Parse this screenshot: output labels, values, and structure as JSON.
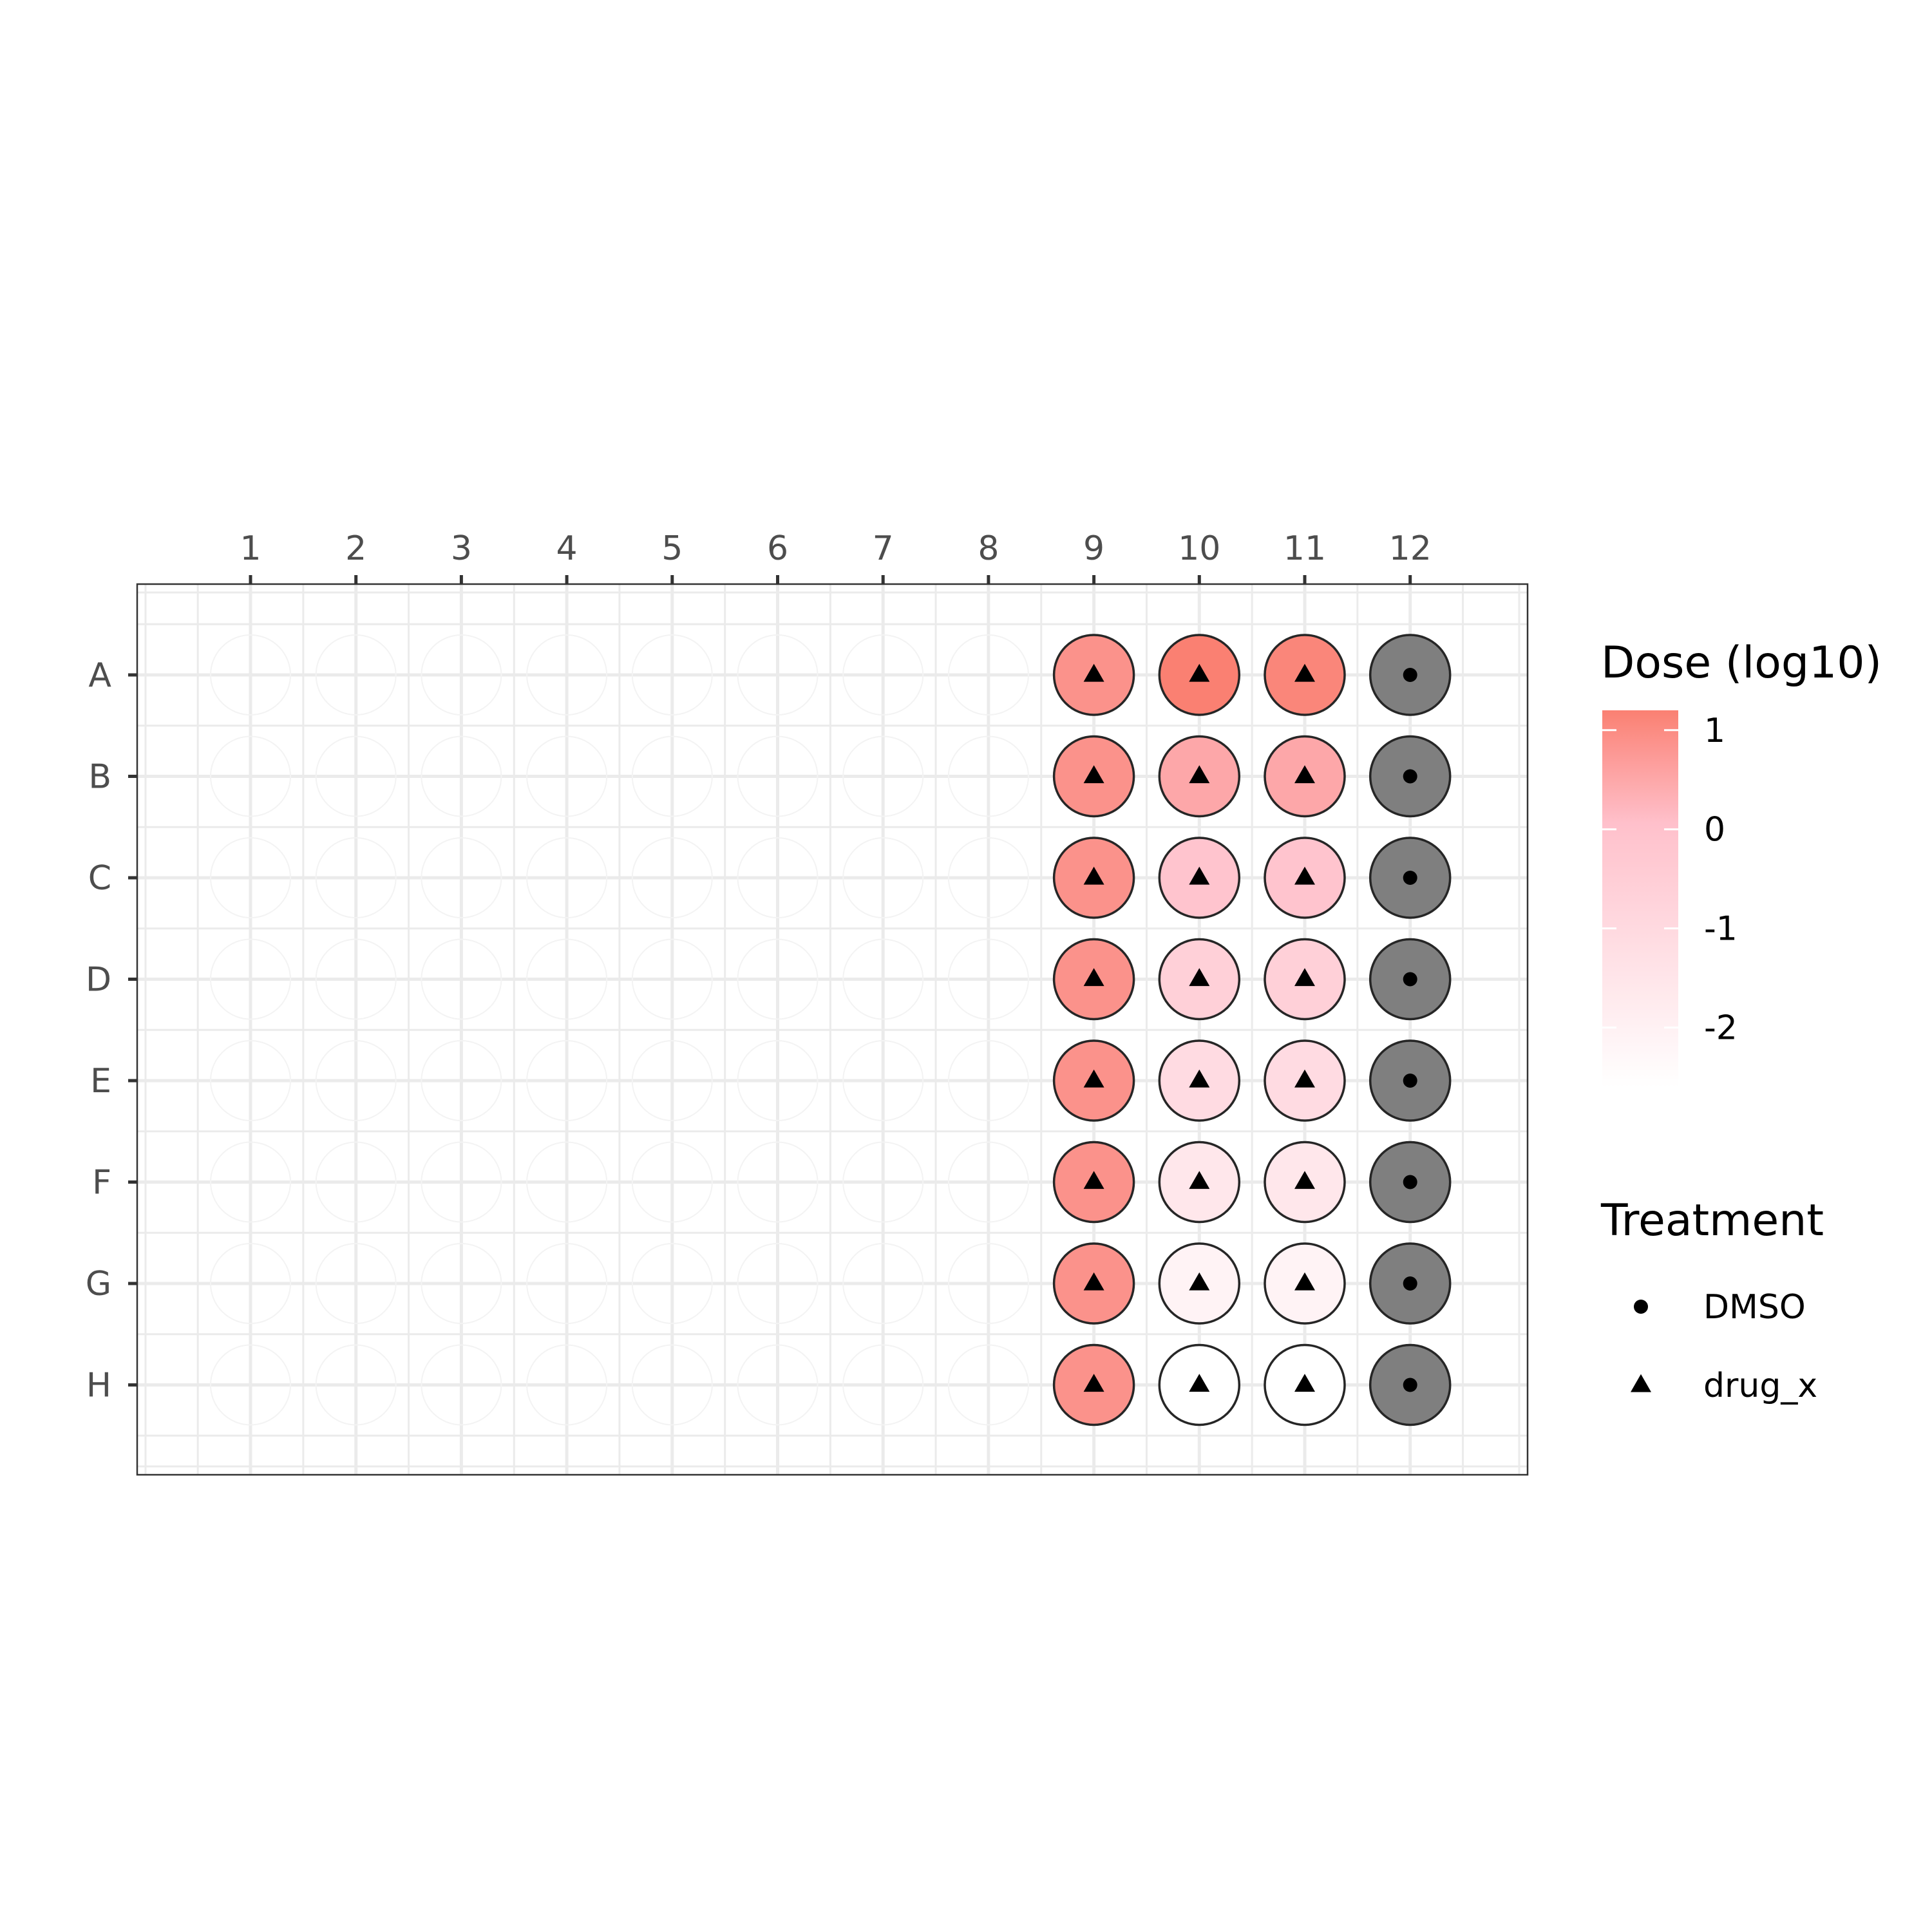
{
  "chart_data": {
    "type": "heatmap",
    "subtype": "plate-map",
    "rows": [
      "A",
      "B",
      "C",
      "D",
      "E",
      "F",
      "G",
      "H"
    ],
    "columns": [
      "1",
      "2",
      "3",
      "4",
      "5",
      "6",
      "7",
      "8",
      "9",
      "10",
      "11",
      "12"
    ],
    "x_axis_position": "top",
    "grid": true,
    "wells": [
      {
        "row": "A",
        "col": 9,
        "treatment": "drug_x",
        "dose_log10": 0.88
      },
      {
        "row": "A",
        "col": 10,
        "treatment": "drug_x",
        "dose_log10": 1.2
      },
      {
        "row": "A",
        "col": 11,
        "treatment": "drug_x",
        "dose_log10": 1.1
      },
      {
        "row": "A",
        "col": 12,
        "treatment": "DMSO",
        "dose_log10": null
      },
      {
        "row": "B",
        "col": 9,
        "treatment": "drug_x",
        "dose_log10": 0.88
      },
      {
        "row": "B",
        "col": 10,
        "treatment": "drug_x",
        "dose_log10": 0.5
      },
      {
        "row": "B",
        "col": 11,
        "treatment": "drug_x",
        "dose_log10": 0.5
      },
      {
        "row": "B",
        "col": 12,
        "treatment": "DMSO",
        "dose_log10": null
      },
      {
        "row": "C",
        "col": 9,
        "treatment": "drug_x",
        "dose_log10": 0.88
      },
      {
        "row": "C",
        "col": 10,
        "treatment": "drug_x",
        "dose_log10": -0.1
      },
      {
        "row": "C",
        "col": 11,
        "treatment": "drug_x",
        "dose_log10": -0.1
      },
      {
        "row": "C",
        "col": 12,
        "treatment": "DMSO",
        "dose_log10": null
      },
      {
        "row": "D",
        "col": 9,
        "treatment": "drug_x",
        "dose_log10": 0.88
      },
      {
        "row": "D",
        "col": 10,
        "treatment": "drug_x",
        "dose_log10": -0.6
      },
      {
        "row": "D",
        "col": 11,
        "treatment": "drug_x",
        "dose_log10": -0.6
      },
      {
        "row": "D",
        "col": 12,
        "treatment": "DMSO",
        "dose_log10": null
      },
      {
        "row": "E",
        "col": 9,
        "treatment": "drug_x",
        "dose_log10": 0.88
      },
      {
        "row": "E",
        "col": 10,
        "treatment": "drug_x",
        "dose_log10": -1.1
      },
      {
        "row": "E",
        "col": 11,
        "treatment": "drug_x",
        "dose_log10": -1.1
      },
      {
        "row": "E",
        "col": 12,
        "treatment": "DMSO",
        "dose_log10": null
      },
      {
        "row": "F",
        "col": 9,
        "treatment": "drug_x",
        "dose_log10": 0.88
      },
      {
        "row": "F",
        "col": 10,
        "treatment": "drug_x",
        "dose_log10": -1.6
      },
      {
        "row": "F",
        "col": 11,
        "treatment": "drug_x",
        "dose_log10": -1.6
      },
      {
        "row": "F",
        "col": 12,
        "treatment": "DMSO",
        "dose_log10": null
      },
      {
        "row": "G",
        "col": 9,
        "treatment": "drug_x",
        "dose_log10": 0.88
      },
      {
        "row": "G",
        "col": 10,
        "treatment": "drug_x",
        "dose_log10": -2.1
      },
      {
        "row": "G",
        "col": 11,
        "treatment": "drug_x",
        "dose_log10": -2.1
      },
      {
        "row": "G",
        "col": 12,
        "treatment": "DMSO",
        "dose_log10": null
      },
      {
        "row": "H",
        "col": 9,
        "treatment": "drug_x",
        "dose_log10": 0.88
      },
      {
        "row": "H",
        "col": 10,
        "treatment": "drug_x",
        "dose_log10": -2.6
      },
      {
        "row": "H",
        "col": 11,
        "treatment": "drug_x",
        "dose_log10": -2.6
      },
      {
        "row": "H",
        "col": 12,
        "treatment": "DMSO",
        "dose_log10": null
      }
    ],
    "color_legend": {
      "title": "Dose (log10)",
      "range": [
        -2.6,
        1.2
      ],
      "breaks": [
        1,
        0,
        -1,
        -2
      ],
      "break_labels": [
        "1",
        "0",
        "-1",
        "-2"
      ],
      "low_color": "#ffffff",
      "mid_color": "#ffc0cb",
      "high_color": "#fa8072",
      "na_color": "#7f7f7f"
    },
    "shape_legend": {
      "title": "Treatment",
      "entries": [
        {
          "label": "DMSO",
          "shape": "circle"
        },
        {
          "label": "drug_x",
          "shape": "triangle"
        }
      ]
    }
  }
}
